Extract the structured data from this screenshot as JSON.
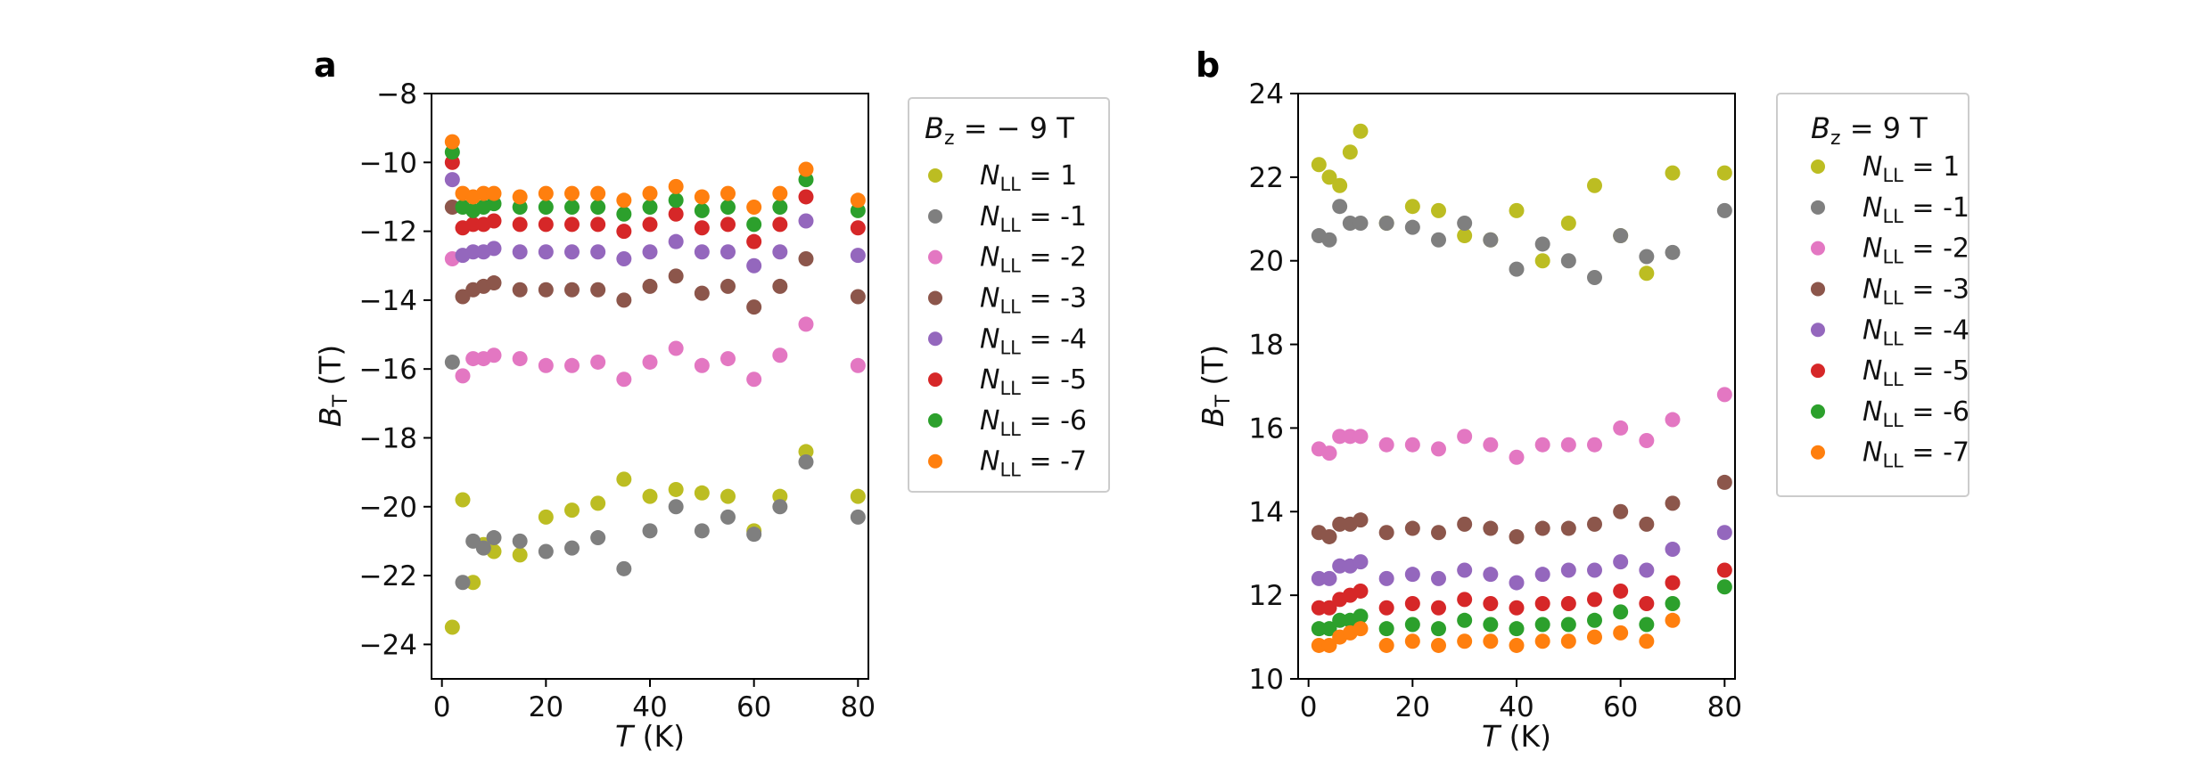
{
  "figure": {
    "panels": [
      "a",
      "b"
    ]
  },
  "chart_data": [
    {
      "panel": "a",
      "type": "scatter",
      "xlabel_var": "T",
      "xlabel_unit": "(K)",
      "ylabel_var": "B",
      "ylabel_sub": "T",
      "ylabel_unit": "(T)",
      "xlim": [
        -2,
        82
      ],
      "ylim": [
        -25,
        -8
      ],
      "xticks": [
        0,
        20,
        40,
        60,
        80
      ],
      "yticks": [
        -24,
        -22,
        -20,
        -18,
        -16,
        -14,
        -12,
        -10,
        -8
      ],
      "xtick_labels": [
        "0",
        "20",
        "40",
        "60",
        "80"
      ],
      "ytick_labels": [
        "−24",
        "−22",
        "−20",
        "−18",
        "−16",
        "−14",
        "−12",
        "−10",
        "−8"
      ],
      "legend": {
        "title_var": "B",
        "title_sub": "z",
        "title_rest": " = − 9 T",
        "position": "outside-right"
      },
      "x": [
        2,
        4,
        6,
        8,
        10,
        15,
        20,
        25,
        30,
        35,
        40,
        45,
        50,
        55,
        60,
        65,
        70,
        80
      ],
      "series": [
        {
          "name": "N_LL = 1",
          "label_pre": "N",
          "label_sub": "LL",
          "label_post": " = 1",
          "color": "#bcbd22",
          "values": [
            -23.5,
            -19.8,
            -22.2,
            -21.1,
            -21.3,
            -21.4,
            -20.3,
            -20.1,
            -19.9,
            -19.2,
            -19.7,
            -19.5,
            -19.6,
            -19.7,
            -20.7,
            -19.7,
            -18.4,
            -19.7
          ]
        },
        {
          "name": "N_LL = -1",
          "label_pre": "N",
          "label_sub": "LL",
          "label_post": " = -1",
          "color": "#7f7f7f",
          "values": [
            -15.8,
            -22.2,
            -21.0,
            -21.2,
            -20.9,
            -21.0,
            -21.3,
            -21.2,
            -20.9,
            -21.8,
            -20.7,
            -20.0,
            -20.7,
            -20.3,
            -20.8,
            -20.0,
            -18.7,
            -20.3
          ]
        },
        {
          "name": "N_LL = -2",
          "label_pre": "N",
          "label_sub": "LL",
          "label_post": " = -2",
          "color": "#e377c2",
          "values": [
            -12.8,
            -16.2,
            -15.7,
            -15.7,
            -15.6,
            -15.7,
            -15.9,
            -15.9,
            -15.8,
            -16.3,
            -15.8,
            -15.4,
            -15.9,
            -15.7,
            -16.3,
            -15.6,
            -14.7,
            -15.9
          ]
        },
        {
          "name": "N_LL = -3",
          "label_pre": "N",
          "label_sub": "LL",
          "label_post": " = -3",
          "color": "#8c564b",
          "values": [
            -11.3,
            -13.9,
            -13.7,
            -13.6,
            -13.5,
            -13.7,
            -13.7,
            -13.7,
            -13.7,
            -14.0,
            -13.6,
            -13.3,
            -13.8,
            -13.6,
            -14.2,
            -13.6,
            -12.8,
            -13.9
          ]
        },
        {
          "name": "N_LL = -4",
          "label_pre": "N",
          "label_sub": "LL",
          "label_post": " = -4",
          "color": "#9467bd",
          "values": [
            -10.5,
            -12.7,
            -12.6,
            -12.6,
            -12.5,
            -12.6,
            -12.6,
            -12.6,
            -12.6,
            -12.8,
            -12.6,
            -12.3,
            -12.6,
            -12.6,
            -13.0,
            -12.6,
            -11.7,
            -12.7
          ]
        },
        {
          "name": "N_LL = -5",
          "label_pre": "N",
          "label_sub": "LL",
          "label_post": " = -5",
          "color": "#d62728",
          "values": [
            -10.0,
            -11.9,
            -11.8,
            -11.8,
            -11.7,
            -11.8,
            -11.8,
            -11.8,
            -11.8,
            -12.0,
            -11.8,
            -11.5,
            -11.9,
            -11.8,
            -12.3,
            -11.8,
            -11.0,
            -11.9
          ]
        },
        {
          "name": "N_LL = -6",
          "label_pre": "N",
          "label_sub": "LL",
          "label_post": " = -6",
          "color": "#2ca02c",
          "values": [
            -9.7,
            -11.3,
            -11.4,
            -11.3,
            -11.2,
            -11.3,
            -11.3,
            -11.3,
            -11.3,
            -11.5,
            -11.3,
            -11.1,
            -11.4,
            -11.3,
            -11.8,
            -11.3,
            -10.5,
            -11.4
          ]
        },
        {
          "name": "N_LL = -7",
          "label_pre": "N",
          "label_sub": "LL",
          "label_post": " = -7",
          "color": "#ff7f0e",
          "values": [
            -9.4,
            -10.9,
            -11.0,
            -10.9,
            -10.9,
            -11.0,
            -10.9,
            -10.9,
            -10.9,
            -11.1,
            -10.9,
            -10.7,
            -11.0,
            -10.9,
            -11.3,
            -10.9,
            -10.2,
            -11.1
          ]
        }
      ]
    },
    {
      "panel": "b",
      "type": "scatter",
      "xlabel_var": "T",
      "xlabel_unit": "(K)",
      "ylabel_var": "B",
      "ylabel_sub": "T",
      "ylabel_unit": "(T)",
      "xlim": [
        -2,
        82
      ],
      "ylim": [
        10,
        24
      ],
      "xticks": [
        0,
        20,
        40,
        60,
        80
      ],
      "yticks": [
        10,
        12,
        14,
        16,
        18,
        20,
        22,
        24
      ],
      "xtick_labels": [
        "0",
        "20",
        "40",
        "60",
        "80"
      ],
      "ytick_labels": [
        "10",
        "12",
        "14",
        "16",
        "18",
        "20",
        "22",
        "24"
      ],
      "legend": {
        "title_var": "B",
        "title_sub": "z",
        "title_rest": " = 9 T",
        "position": "outside-right"
      },
      "x": [
        2,
        4,
        6,
        8,
        10,
        15,
        20,
        25,
        30,
        35,
        40,
        45,
        50,
        55,
        60,
        65,
        70,
        80
      ],
      "series": [
        {
          "name": "N_LL = 1",
          "label_pre": "N",
          "label_sub": "LL",
          "label_post": " = 1",
          "color": "#bcbd22",
          "values": [
            22.3,
            22.0,
            21.8,
            22.6,
            23.1,
            20.9,
            21.3,
            21.2,
            20.6,
            20.5,
            21.2,
            20.0,
            20.9,
            21.8,
            20.6,
            19.7,
            22.1,
            22.1
          ]
        },
        {
          "name": "N_LL = -1",
          "label_pre": "N",
          "label_sub": "LL",
          "label_post": " = -1",
          "color": "#7f7f7f",
          "values": [
            20.6,
            20.5,
            21.3,
            20.9,
            20.9,
            20.9,
            20.8,
            20.5,
            20.9,
            20.5,
            19.8,
            20.4,
            20.0,
            19.6,
            20.6,
            20.1,
            20.2,
            21.2
          ]
        },
        {
          "name": "N_LL = -2",
          "label_pre": "N",
          "label_sub": "LL",
          "label_post": " = -2",
          "color": "#e377c2",
          "values": [
            15.5,
            15.4,
            15.8,
            15.8,
            15.8,
            15.6,
            15.6,
            15.5,
            15.8,
            15.6,
            15.3,
            15.6,
            15.6,
            15.6,
            16.0,
            15.7,
            16.2,
            16.8
          ]
        },
        {
          "name": "N_LL = -3",
          "label_pre": "N",
          "label_sub": "LL",
          "label_post": " = -3",
          "color": "#8c564b",
          "values": [
            13.5,
            13.4,
            13.7,
            13.7,
            13.8,
            13.5,
            13.6,
            13.5,
            13.7,
            13.6,
            13.4,
            13.6,
            13.6,
            13.7,
            14.0,
            13.7,
            14.2,
            14.7
          ]
        },
        {
          "name": "N_LL = -4",
          "label_pre": "N",
          "label_sub": "LL",
          "label_post": " = -4",
          "color": "#9467bd",
          "values": [
            12.4,
            12.4,
            12.7,
            12.7,
            12.8,
            12.4,
            12.5,
            12.4,
            12.6,
            12.5,
            12.3,
            12.5,
            12.6,
            12.6,
            12.8,
            12.6,
            13.1,
            13.5
          ]
        },
        {
          "name": "N_LL = -5",
          "label_pre": "N",
          "label_sub": "LL",
          "label_post": " = -5",
          "color": "#d62728",
          "values": [
            11.7,
            11.7,
            11.9,
            12.0,
            12.1,
            11.7,
            11.8,
            11.7,
            11.9,
            11.8,
            11.7,
            11.8,
            11.8,
            11.9,
            12.1,
            11.8,
            12.3,
            12.6
          ]
        },
        {
          "name": "N_LL = -6",
          "label_pre": "N",
          "label_sub": "LL",
          "label_post": " = -6",
          "color": "#2ca02c",
          "values": [
            11.2,
            11.2,
            11.4,
            11.4,
            11.5,
            11.2,
            11.3,
            11.2,
            11.4,
            11.3,
            11.2,
            11.3,
            11.3,
            11.4,
            11.6,
            11.3,
            11.8,
            12.2
          ]
        },
        {
          "name": "N_LL = -7",
          "label_pre": "N",
          "label_sub": "LL",
          "label_post": " = -7",
          "color": "#ff7f0e",
          "values": [
            10.8,
            10.8,
            11.0,
            11.1,
            11.2,
            10.8,
            10.9,
            10.8,
            10.9,
            10.9,
            10.8,
            10.9,
            10.9,
            11.0,
            11.1,
            10.9,
            11.4,
            null
          ]
        }
      ]
    }
  ]
}
